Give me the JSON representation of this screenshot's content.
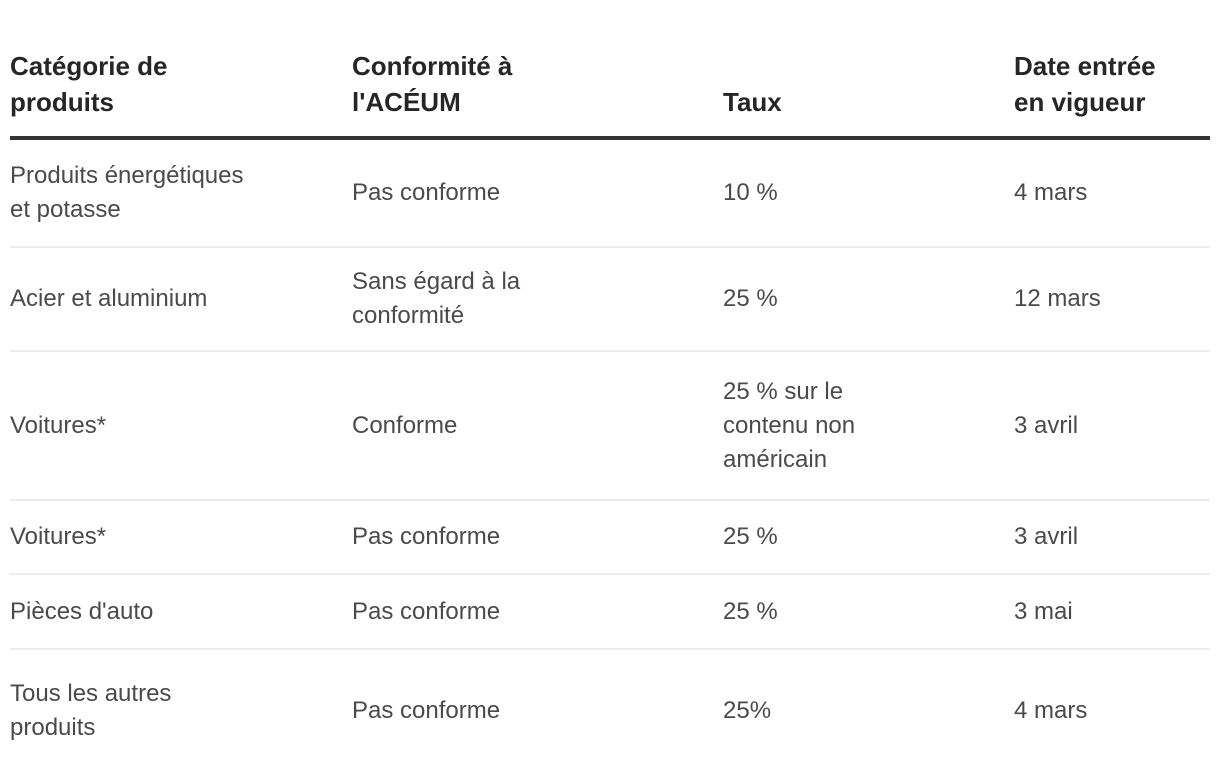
{
  "table": {
    "columns": [
      {
        "label": "Catégorie de\nproduits"
      },
      {
        "label": "Conformité à\nl'ACÉUM"
      },
      {
        "label": "Taux"
      },
      {
        "label": "Date entrée\nen vigueur"
      }
    ],
    "rows": [
      {
        "category": "Produits énergétiques\net potasse",
        "compliance": "Pas conforme",
        "rate": "10 %",
        "date": "4 mars"
      },
      {
        "category": "Acier et aluminium",
        "compliance": "Sans égard à la\nconformité",
        "rate": "25 %",
        "date": "12 mars"
      },
      {
        "category": "Voitures*",
        "compliance": "Conforme",
        "rate": "25 % sur le\ncontenu non\naméricain",
        "date": "3 avril"
      },
      {
        "category": "Voitures*",
        "compliance": "Pas conforme",
        "rate": "25 %",
        "date": "3 avril"
      },
      {
        "category": "Pièces d'auto",
        "compliance": "Pas conforme",
        "rate": "25 %",
        "date": "3 mai"
      },
      {
        "category": "Tous les autres\nproduits",
        "compliance": "Pas conforme",
        "rate": "25%",
        "date": "4 mars"
      }
    ]
  },
  "colors": {
    "header_text": "#262626",
    "body_text": "#4a4a4a",
    "header_rule": "#333333",
    "row_divider": "#ededed",
    "background": "#ffffff"
  },
  "chart_data": {
    "type": "table",
    "title": "",
    "columns": [
      "Catégorie de produits",
      "Conformité à l'ACÉUM",
      "Taux",
      "Date entrée en vigueur"
    ],
    "rows": [
      [
        "Produits énergétiques et potasse",
        "Pas conforme",
        "10 %",
        "4 mars"
      ],
      [
        "Acier et aluminium",
        "Sans égard à la conformité",
        "25 %",
        "12 mars"
      ],
      [
        "Voitures*",
        "Conforme",
        "25 % sur le contenu non américain",
        "3 avril"
      ],
      [
        "Voitures*",
        "Pas conforme",
        "25 %",
        "3 avril"
      ],
      [
        "Pièces d'auto",
        "Pas conforme",
        "25 %",
        "3 mai"
      ],
      [
        "Tous les autres produits",
        "Pas conforme",
        "25%",
        "4 mars"
      ]
    ]
  }
}
